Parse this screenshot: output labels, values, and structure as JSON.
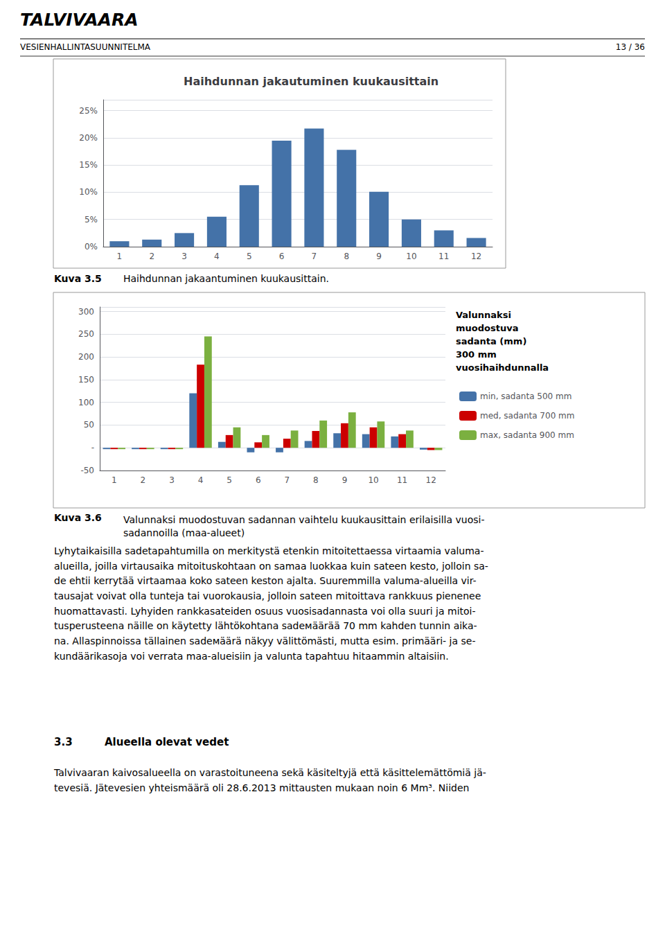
{
  "chart_data": [
    {
      "type": "bar",
      "title": "Haihdunnan jakautuminen kuukausittain",
      "categories": [
        1,
        2,
        3,
        4,
        5,
        6,
        7,
        8,
        9,
        10,
        11,
        12
      ],
      "values": [
        0.01,
        0.013,
        0.025,
        0.055,
        0.113,
        0.195,
        0.217,
        0.178,
        0.101,
        0.05,
        0.03,
        0.016
      ],
      "color": "#4472A8",
      "ylim": [
        0,
        0.27
      ],
      "yticks": [
        {
          "value": 0.0,
          "label": "0%"
        },
        {
          "value": 0.05,
          "label": "5%"
        },
        {
          "value": 0.1,
          "label": "10%"
        },
        {
          "value": 0.15,
          "label": "15%"
        },
        {
          "value": 0.2,
          "label": "20%"
        },
        {
          "value": 0.25,
          "label": "25%"
        }
      ],
      "grid": true,
      "annotations": [
        "TALVIVAARA",
        "VESIENHALLINTASUUNNITELMA",
        "13 / 36",
        "Kuva 3.5",
        "Haihdunnan jakaantuminen kuukausittain."
      ]
    },
    {
      "type": "bar",
      "categories": [
        1,
        2,
        3,
        4,
        5,
        6,
        7,
        8,
        9,
        10,
        11,
        12
      ],
      "series": [
        {
          "name": "min, sadanta 500 mm",
          "color": "#4472A8",
          "values": [
            -3,
            -3,
            -3,
            120,
            13,
            -10,
            -10,
            15,
            32,
            30,
            25,
            -4
          ]
        },
        {
          "name": "med, sadanta 700 mm",
          "color": "#CC0000",
          "values": [
            -3,
            -3,
            -3,
            183,
            28,
            12,
            20,
            37,
            54,
            45,
            30,
            -5
          ]
        },
        {
          "name": "max, sadanta 900 mm",
          "color": "#7BB040",
          "values": [
            -3,
            -3,
            -3,
            245,
            45,
            28,
            38,
            60,
            78,
            58,
            38,
            -5
          ]
        }
      ],
      "ylim": [
        -50,
        310
      ],
      "yticks": [
        -50,
        {
          "value": 0,
          "label": "-"
        },
        50,
        100,
        150,
        200,
        250,
        300
      ],
      "grid": true,
      "legend": "right",
      "annotations": [
        "Valunnaksi\nmuodostuva\nsadanta (mm)\n300 mm\nvuosihaihdunnalla",
        "Kuva 3.6",
        "Valunnaksi muodostuvan sadannan vaihtelu kuukausittain erilaisilla vuosi-\nsadannoilla (maa-alueet)",
        "Lyhytaikaisilla sadetapahtumilla on merkitystä etenkin mitoitettaessa virtaamia valuma-\nalueilla, joilla virtausaika mitoituskohtaan on samaa luokkaa kuin sateen kesto, jolloin sa-\nde ehtii kerrytää virtaamaa koko sateen keston ajalta. Suuremmilla valuma-alueilla vir-\ntausajat voivat olla tunteja tai vuorokausia, jolloin sateen mitoittava rankkuus pienenee\nhuomattavasti. Lyhyiden rankkasateiden osuus vuosisadannasta voi olla suuri ja mitoi-\ntusperusteena näille on käytetty lähtökohtana sadeмäärää 70 mm kahden tunnin aika-\nna. Allaspinnoissa tällainen sadeмäärä näkyy välittömästi, mutta esim. primääri- ja se-\nkundäärikasoja voi verrata maa-alueisiin ja valunta tapahtuu hitaammin altaisiin.",
        "3.3",
        "Alueella olevat vedet",
        "Talvivaaran kaivosalueella on varastoituneena sekä käsiteltyjä että käsittelemättömiä jä-\ntevesiä. Jätevesien yhteismäärä oli 28.6.2013 mittausten mukaan noin 6 Mm³. Niiden"
      ]
    }
  ]
}
